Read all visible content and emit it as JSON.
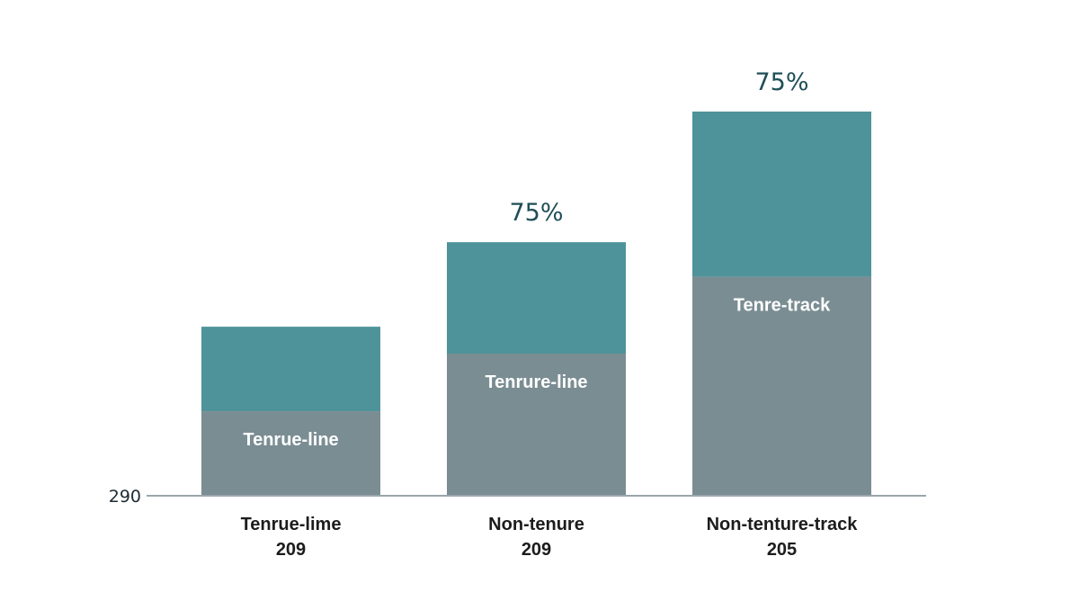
{
  "chart_data": {
    "type": "bar",
    "stacked": true,
    "title": "",
    "xlabel": "",
    "ylabel": "",
    "baseline_tick_label": "290",
    "grid": false,
    "legend": "none",
    "categories": [
      {
        "label": "Tenrue-lime",
        "count": "209",
        "top_label": ""
      },
      {
        "label": "Non-tenure",
        "count": "209",
        "top_label": "75%"
      },
      {
        "label": "Non-tenture-track",
        "count": "205",
        "top_label": "75%"
      }
    ],
    "series": [
      {
        "segment_labels": [
          "Tenrue-line",
          "Tenrure-line",
          "Tenre-track"
        ],
        "values": [
          22,
          37,
          57
        ],
        "color": "#7a8d93"
      },
      {
        "segment_labels": [
          "",
          "",
          ""
        ],
        "values": [
          22,
          29,
          43
        ],
        "color": "#4e9399"
      }
    ],
    "ylim": [
      0,
      100
    ],
    "colors": {
      "axis": "#9aa6ab",
      "value_text": "#1f4e57"
    }
  }
}
